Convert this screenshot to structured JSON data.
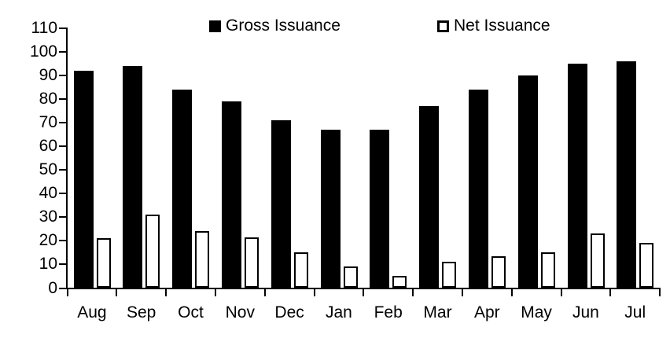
{
  "chart_data": {
    "type": "bar",
    "title": "",
    "xlabel": "",
    "ylabel": "",
    "categories": [
      "Aug",
      "Sep",
      "Oct",
      "Nov",
      "Dec",
      "Jan",
      "Feb",
      "Mar",
      "Apr",
      "May",
      "Jun",
      "Jul"
    ],
    "series": [
      {
        "name": "Gross Issuance",
        "fill": "#000000",
        "stroke": "#000000",
        "values": [
          92,
          94,
          84,
          79,
          71,
          67,
          67,
          77,
          84,
          90,
          95,
          96
        ]
      },
      {
        "name": "Net Issuance",
        "fill": "#ffffff",
        "stroke": "#000000",
        "values": [
          21,
          31,
          24,
          21.5,
          15,
          9,
          5,
          11,
          13.5,
          15,
          23,
          19
        ]
      }
    ],
    "ylim": [
      0,
      110
    ],
    "yticks": [
      0,
      10,
      20,
      30,
      40,
      50,
      60,
      70,
      80,
      90,
      100,
      110
    ],
    "grid": false,
    "legend_position": "top"
  },
  "colors": {
    "background": "#ffffff",
    "axis": "#000000",
    "text": "#000000",
    "gross_bar": "#000000",
    "net_bar_fill": "#ffffff",
    "net_bar_outline": "#000000"
  }
}
